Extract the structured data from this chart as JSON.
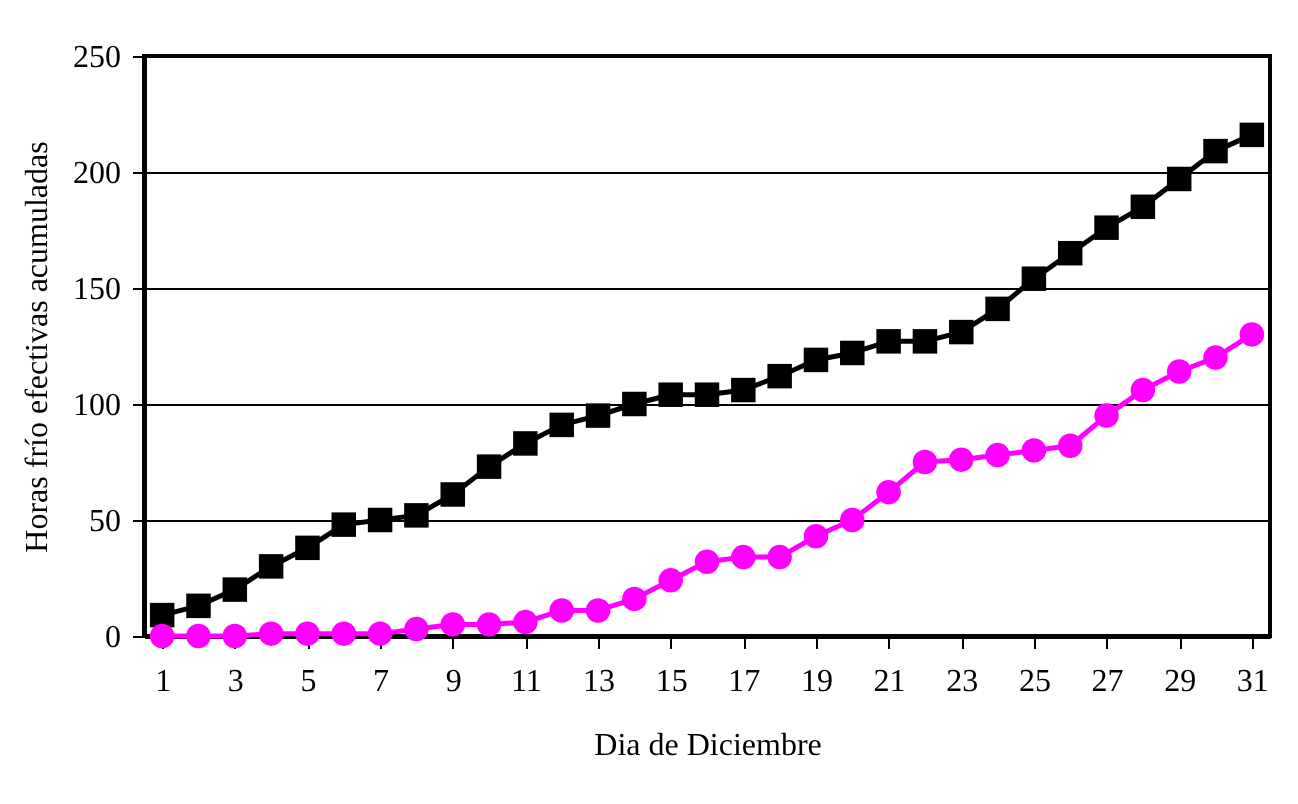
{
  "chart_data": {
    "type": "line",
    "xlabel": "Dia de Diciembre",
    "ylabel": "Horas frío efectivas acumuladas",
    "x": [
      1,
      2,
      3,
      4,
      5,
      6,
      7,
      8,
      9,
      10,
      11,
      12,
      13,
      14,
      15,
      16,
      17,
      18,
      19,
      20,
      21,
      22,
      23,
      24,
      25,
      26,
      27,
      28,
      29,
      30,
      31
    ],
    "series": [
      {
        "color": "#000000",
        "marker": "square",
        "values": [
          9,
          13,
          20,
          30,
          38,
          48,
          50,
          52,
          61,
          73,
          83,
          91,
          95,
          100,
          104,
          104,
          106,
          112,
          119,
          122,
          127,
          127,
          131,
          141,
          154,
          165,
          176,
          185,
          197,
          209,
          216
        ]
      },
      {
        "color": "#ff00ff",
        "marker": "circle",
        "values": [
          0,
          0,
          0,
          1,
          1,
          1,
          1,
          3,
          5,
          5,
          6,
          11,
          11,
          16,
          24,
          32,
          34,
          34,
          43,
          50,
          62,
          75,
          76,
          78,
          80,
          82,
          95,
          106,
          114,
          120,
          130
        ]
      }
    ],
    "xlim": [
      0.5,
      31.5
    ],
    "xticks": [
      1,
      3,
      5,
      7,
      9,
      11,
      13,
      15,
      17,
      19,
      21,
      23,
      25,
      27,
      29,
      31
    ],
    "ylim": [
      0,
      250
    ],
    "yticks": [
      0,
      50,
      100,
      150,
      200,
      250
    ],
    "grid": "y"
  }
}
